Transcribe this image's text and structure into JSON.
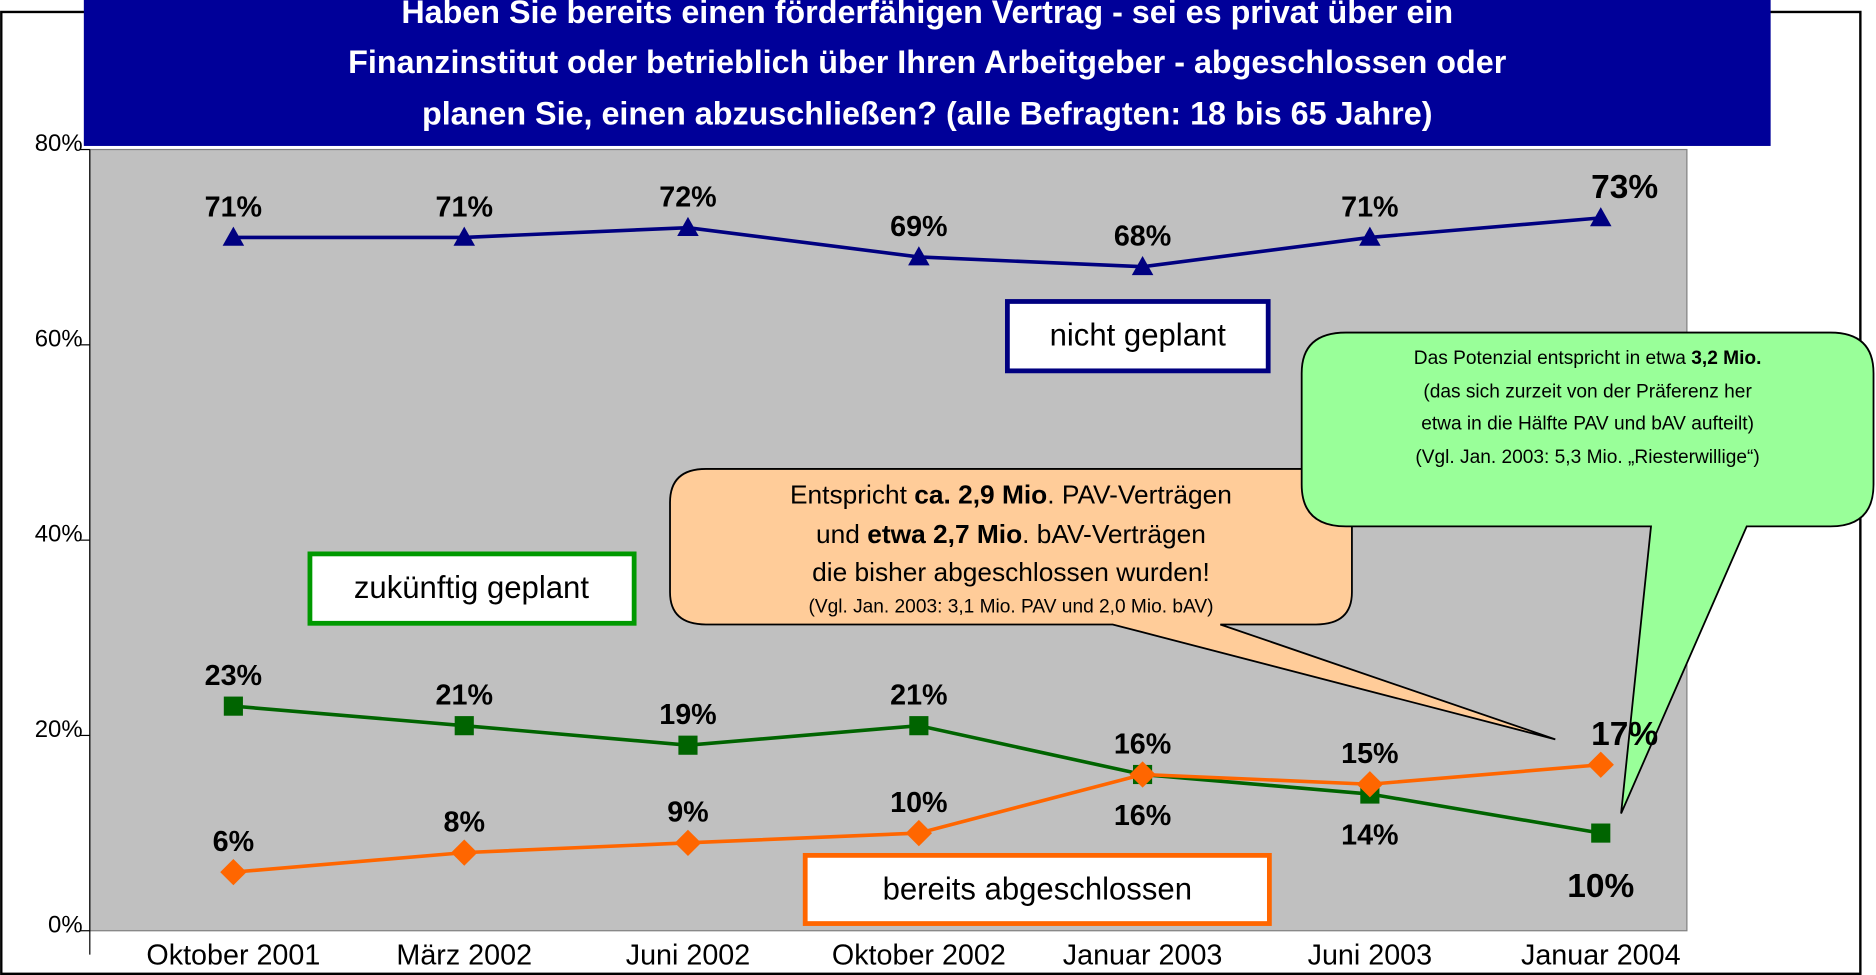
{
  "chart_data": {
    "type": "line",
    "title": [
      "Haben Sie bereits einen förderfähigen Vertrag - sei es privat über ein",
      "Finanzinstitut oder betrieblich über Ihren Arbeitgeber - abgeschlossen oder",
      "planen Sie, einen abzuschließen? (alle Befragten: 18 bis 65 Jahre)"
    ],
    "categories": [
      "Oktober 2001",
      "März 2002",
      "Juni 2002",
      "Oktober 2002",
      "Januar 2003",
      "Juni 2003",
      "Januar 2004"
    ],
    "ylim": [
      0,
      80
    ],
    "yticks": [
      {
        "value": 0,
        "label": "0%"
      },
      {
        "value": 20,
        "label": "20%"
      },
      {
        "value": 40,
        "label": "40%"
      },
      {
        "value": 60,
        "label": "60%"
      },
      {
        "value": 80,
        "label": "80%"
      }
    ],
    "series": [
      {
        "name": "nicht geplant",
        "color": "#000080",
        "marker": "triangle",
        "values": [
          71,
          71,
          72,
          69,
          68,
          71,
          73
        ],
        "value_labels": [
          "71%",
          "71%",
          "72%",
          "69%",
          "68%",
          "71%",
          "73%"
        ]
      },
      {
        "name": "zukünftig geplant",
        "color": "#006400",
        "marker": "square",
        "values": [
          23,
          21,
          19,
          21,
          16,
          14,
          10
        ],
        "value_labels": [
          "23%",
          "21%",
          "19%",
          "21%",
          "16%",
          "14%",
          "10%"
        ]
      },
      {
        "name": "bereits abgeschlossen",
        "color": "#ff6600",
        "marker": "diamond",
        "values": [
          6,
          8,
          9,
          10,
          16,
          15,
          17
        ],
        "value_labels": [
          "6%",
          "8%",
          "9%",
          "10%",
          "16%",
          "15%",
          "17%"
        ]
      }
    ],
    "annotations": [
      {
        "lines": [
          [
            {
              "text": "Entspricht "
            },
            {
              "text": "ca. 2,9 Mio",
              "bold": true
            },
            {
              "text": ". PAV-Verträgen"
            }
          ],
          [
            {
              "text": "und "
            },
            {
              "text": "etwa 2,7 Mio",
              "bold": true
            },
            {
              "text": ". bAV-Verträgen"
            }
          ],
          [
            {
              "text": "die bisher abgeschlossen wurden!"
            }
          ],
          [
            {
              "text": "(Vgl. Jan. 2003: 3,1 Mio. PAV und 2,0 Mio. bAV)"
            }
          ]
        ]
      },
      {
        "lines": [
          [
            {
              "text": "Das Potenzial entspricht in etwa "
            },
            {
              "text": "3,2 Mio.",
              "bold": true
            }
          ],
          [
            {
              "text": "(das sich zurzeit von der Präferenz her"
            }
          ],
          [
            {
              "text": "etwa in die Hälfte PAV und bAV aufteilt)"
            }
          ],
          [
            {
              "text": "(Vgl. Jan. 2003: 5,3 Mio. „Riesterwillige“)"
            }
          ]
        ]
      }
    ]
  }
}
